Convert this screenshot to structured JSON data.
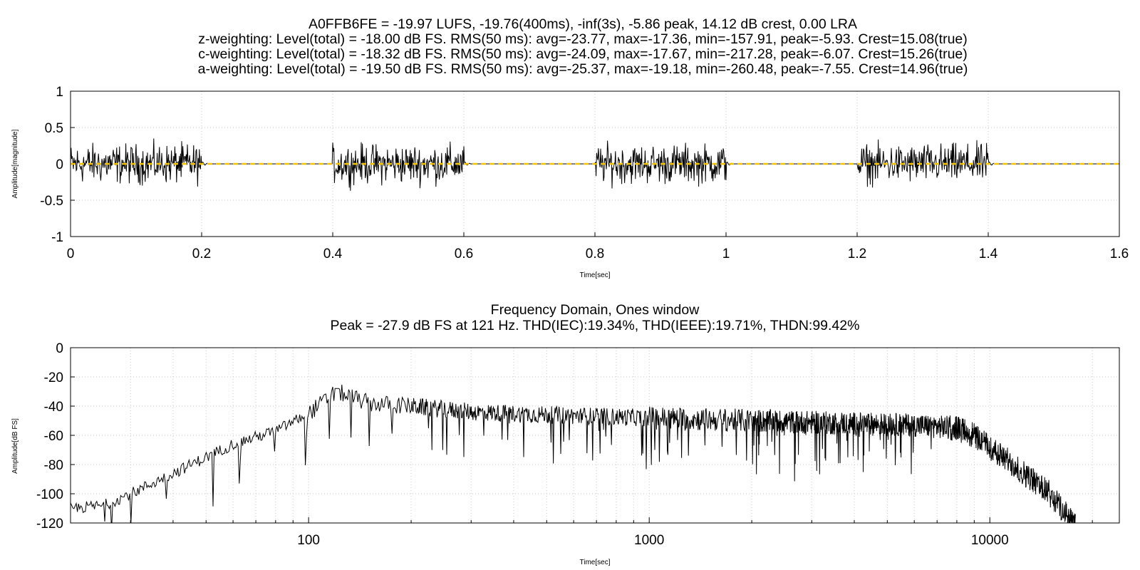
{
  "chart_data": [
    {
      "type": "line",
      "title_lines": [
        "A0FFB6FE = -19.97 LUFS, -19.76(400ms), -inf(3s), -5.86 peak, 14.12 dB crest, 0.00 LRA",
        "z-weighting: Level(total) = -18.00 dB FS. RMS(50 ms): avg=-23.77, max=-17.36, min=-157.91, peak=-5.93. Crest=15.08(true)",
        "c-weighting: Level(total) = -18.32 dB FS. RMS(50 ms): avg=-24.09, max=-17.67, min=-217.28, peak=-6.07. Crest=15.26(true)",
        "a-weighting: Level(total) = -19.50 dB FS. RMS(50 ms): avg=-25.37, max=-19.18, min=-260.48, peak=-7.55. Crest=14.96(true)"
      ],
      "xlabel": "Time[sec]",
      "ylabel": "Amplitude[magnitude]",
      "xlim": [
        0,
        1.6
      ],
      "ylim": [
        -1,
        1
      ],
      "xticks": [
        "0",
        "0.2",
        "0.4",
        "0.6",
        "0.8",
        "1",
        "1.2",
        "1.4",
        "1.6"
      ],
      "yticks": [
        "1",
        "0.5",
        "0",
        "-0.5",
        "-1"
      ],
      "grid": true,
      "series": [
        {
          "kind": "signal",
          "color": "#000000",
          "bursts": [
            [
              0.0,
              0.2
            ],
            [
              0.4,
              0.6
            ],
            [
              0.8,
              1.0
            ],
            [
              1.2,
              1.4
            ]
          ],
          "burst_peak_amplitude": 0.45,
          "silence_amplitude": 0.0
        },
        {
          "kind": "mean",
          "color": "#f5c400",
          "value": 0.0,
          "style": "dashed"
        }
      ]
    },
    {
      "type": "line",
      "title_lines": [
        "Frequency Domain, Ones window",
        "Peak = -27.9 dB FS at 121 Hz. THD(IEC):19.34%, THD(IEEE):19.71%, THDN:99.42%"
      ],
      "xlabel": "Time[sec]",
      "ylabel": "Amplitude[dB FS]",
      "xscale": "log",
      "xlim": [
        20,
        24000
      ],
      "ylim": [
        -120,
        0
      ],
      "xticks": [
        "100",
        "1000",
        "10000"
      ],
      "yticks": [
        "0",
        "-20",
        "-40",
        "-60",
        "-80",
        "-100",
        "-120"
      ],
      "grid": true,
      "series": [
        {
          "kind": "spectrum",
          "color": "#000000",
          "envelope": {
            "x": [
              20,
              25,
              30,
              40,
              50,
              60,
              80,
              100,
              121,
              150,
              200,
              300,
              500,
              1000,
              2000,
              4000,
              6000,
              8000,
              9000,
              10000,
              12000,
              15000,
              17500
            ],
            "y": [
              -110,
              -108,
              -100,
              -86,
              -75,
              -66,
              -57,
              -45,
              -30,
              -38,
              -40,
              -44,
              -46,
              -48,
              -50,
              -52,
              -53,
              -55,
              -60,
              -68,
              -82,
              -100,
              -120
            ]
          },
          "peak": {
            "x": 121,
            "y": -27.9
          }
        }
      ]
    }
  ]
}
